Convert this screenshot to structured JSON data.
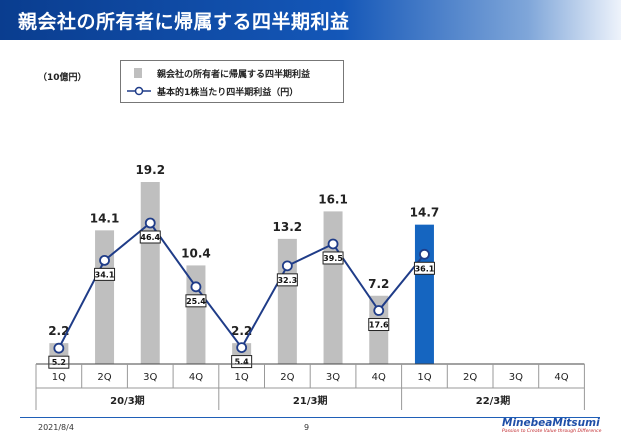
{
  "page": {
    "title": "親会社の所有者に帰属する四半期利益",
    "unit": "（10億円）",
    "date": "2021/8/4",
    "page_number": "9",
    "logo": {
      "name": "MinebeaMitsumi",
      "tagline": "Passion to Create Value through Difference"
    }
  },
  "colors": {
    "bar": "#bfbfbf",
    "bar_highlight": "#1565c0",
    "line": "#1f3c88",
    "title_bg": "#0a3d8f"
  },
  "chart_data": {
    "type": "bar+line",
    "title": "親会社の所有者に帰属する四半期利益",
    "unit": "（10億円）",
    "categories": [
      "1Q",
      "2Q",
      "3Q",
      "4Q",
      "1Q",
      "2Q",
      "3Q",
      "4Q",
      "1Q",
      "2Q",
      "3Q",
      "4Q"
    ],
    "groups": [
      {
        "label": "20/3期",
        "count": 4
      },
      {
        "label": "21/3期",
        "count": 4
      },
      {
        "label": "22/3期",
        "count": 4
      }
    ],
    "series": [
      {
        "name": "親会社の所有者に帰属する四半期利益",
        "type": "bar",
        "values": [
          2.2,
          14.1,
          19.2,
          10.4,
          2.2,
          13.2,
          16.1,
          7.2,
          14.7,
          null,
          null,
          null
        ],
        "value_labels": [
          "2.2",
          "14.1",
          "19.2",
          "10.4",
          "2.2",
          "13.2",
          "16.1",
          "7.2",
          "14.7",
          "",
          "",
          ""
        ],
        "highlight_index": 8
      },
      {
        "name": "基本的1株当たり四半期利益（円）",
        "type": "line",
        "values": [
          5.2,
          34.1,
          46.4,
          25.4,
          5.4,
          32.3,
          39.5,
          17.6,
          36.1,
          null,
          null,
          null
        ],
        "value_labels": [
          "5.2",
          "34.1",
          "46.4",
          "25.4",
          "5.4",
          "32.3",
          "39.5",
          "17.6",
          "36.1",
          "",
          "",
          ""
        ]
      }
    ],
    "ylim_bar": [
      0,
      20
    ],
    "ylim_line": [
      0,
      53
    ],
    "grid": false,
    "legend_position": "top-left"
  }
}
